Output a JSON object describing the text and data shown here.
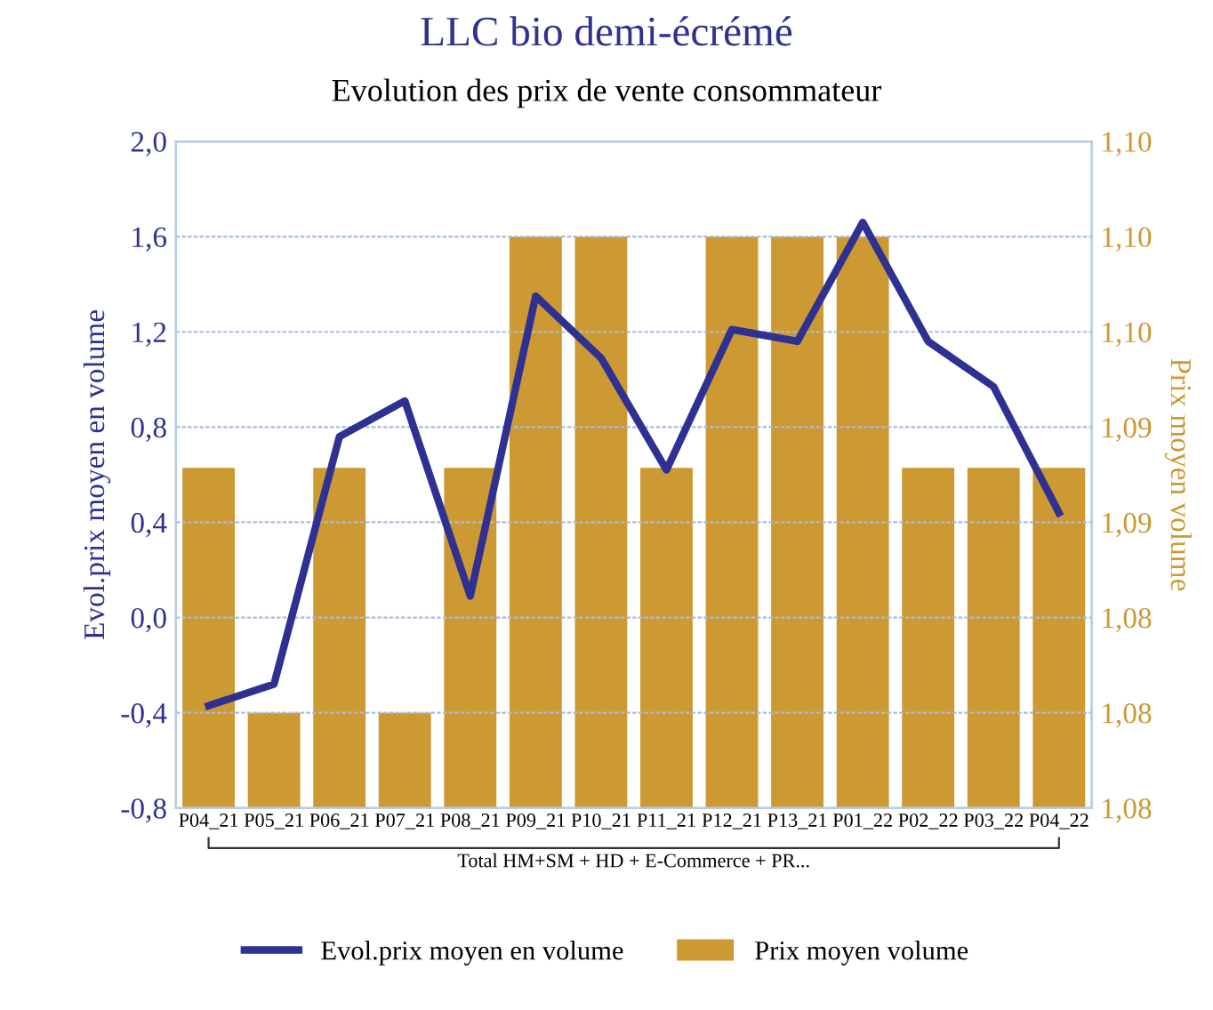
{
  "chart_data": {
    "type": "bar",
    "title": "LLC bio demi-écrémé",
    "subtitle": "Evolution des prix de vente consommateur",
    "ylabel": "Evol.prix moyen en volume",
    "y2label": "Prix moyen volume",
    "categories": [
      "P04_21",
      "P05_21",
      "P06_21",
      "P07_21",
      "P08_21",
      "P09_21",
      "P10_21",
      "P11_21",
      "P12_21",
      "P13_21",
      "P01_22",
      "P02_22",
      "P03_22",
      "P04_22"
    ],
    "annotations": [
      "Total HM+SM + HD + E-Commerce + PR..."
    ],
    "series": [
      {
        "name": "Evol.prix moyen en volume",
        "type": "line",
        "color": "#2e3192",
        "values": [
          -0.37,
          -0.28,
          0.76,
          0.91,
          0.09,
          1.35,
          1.09,
          0.62,
          1.21,
          1.16,
          1.66,
          1.16,
          0.97,
          0.44
        ]
      },
      {
        "name": "Prix moyen volume",
        "axis": "y2",
        "color": "#cc9933",
        "values": [
          1.09,
          1.081,
          1.09,
          1.081,
          1.09,
          1.0985,
          1.0985,
          1.09,
          1.0985,
          1.0985,
          1.0985,
          1.09,
          1.09,
          1.09
        ]
      }
    ],
    "ylim": [
      -0.8,
      2.0
    ],
    "yticks": [
      {
        "value": -0.8,
        "label": "-0,8"
      },
      {
        "value": -0.4,
        "label": "-0,4"
      },
      {
        "value": 0.0,
        "label": "0,0"
      },
      {
        "value": 0.4,
        "label": "0,4"
      },
      {
        "value": 0.8,
        "label": "0,8"
      },
      {
        "value": 1.2,
        "label": "1,2"
      },
      {
        "value": 1.6,
        "label": "1,6"
      },
      {
        "value": 2.0,
        "label": "2,0"
      }
    ],
    "y2lim": [
      1.0775,
      1.102
    ],
    "y2ticks": [
      {
        "value": 1.0775,
        "label": "1,08"
      },
      {
        "value": 1.081,
        "label": "1,08"
      },
      {
        "value": 1.0845,
        "label": "1,08"
      },
      {
        "value": 1.088,
        "label": "1,09"
      },
      {
        "value": 1.0915,
        "label": "1,09"
      },
      {
        "value": 1.095,
        "label": "1,10"
      },
      {
        "value": 1.0985,
        "label": "1,10"
      },
      {
        "value": 1.102,
        "label": "1,10"
      }
    ],
    "grid": "y",
    "legend": "bottom",
    "marker": "none",
    "line_style": "solid"
  }
}
